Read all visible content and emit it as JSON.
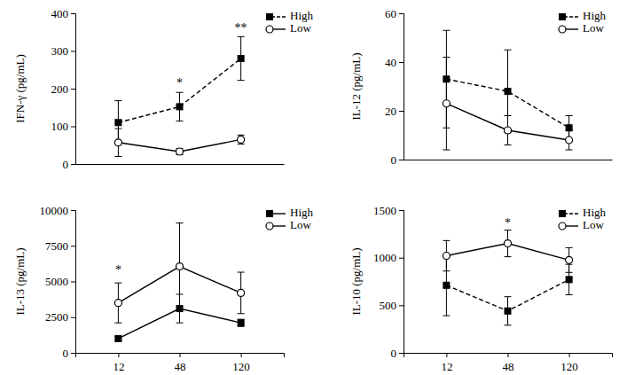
{
  "chart_data": [
    {
      "type": "line",
      "y_label": "IFN-γ (pg/mL)",
      "categories": [
        "12",
        "48",
        "120"
      ],
      "ylim": [
        0,
        400
      ],
      "yticks": [
        0,
        100,
        200,
        300,
        400
      ],
      "tick_labels": "y",
      "legend": "top-right",
      "series": [
        {
          "name": "High",
          "color": "#000000",
          "marker": "square",
          "line_style": "dashed",
          "values": [
            110,
            152,
            280
          ],
          "errors": [
            58,
            38,
            58
          ]
        },
        {
          "name": "Low",
          "color": "#000000",
          "marker": "circle-open",
          "line_style": "solid",
          "values": [
            57,
            33,
            65
          ],
          "errors": [
            37,
            8,
            12
          ]
        }
      ],
      "annotations": [
        {
          "text": "*",
          "x": "48",
          "y": 205
        },
        {
          "text": "**",
          "x": "120",
          "y": 350
        }
      ]
    },
    {
      "type": "line",
      "y_label": "IL-12 (pg/mL)",
      "categories": [
        "12",
        "48",
        "120"
      ],
      "ylim": [
        0,
        60
      ],
      "yticks": [
        0,
        20,
        40,
        60
      ],
      "tick_labels": "y",
      "legend": "top-right",
      "series": [
        {
          "name": "High",
          "color": "#000000",
          "marker": "square",
          "line_style": "dashed",
          "values": [
            33,
            28,
            13
          ],
          "errors": [
            20,
            17,
            5
          ]
        },
        {
          "name": "Low",
          "color": "#000000",
          "marker": "circle-open",
          "line_style": "solid",
          "values": [
            23,
            12,
            8
          ],
          "errors": [
            19,
            6,
            4
          ]
        }
      ]
    },
    {
      "type": "line",
      "y_label": "IL-13 (pg/mL)",
      "categories": [
        "12",
        "48",
        "120"
      ],
      "ylim": [
        0,
        10000
      ],
      "yticks": [
        0,
        2500,
        5000,
        7500,
        10000
      ],
      "legend": "top-right",
      "series": [
        {
          "name": "High",
          "color": "#000000",
          "marker": "square",
          "line_style": "solid",
          "values": [
            1000,
            3100,
            2100
          ],
          "errors": [
            150,
            1000,
            250
          ]
        },
        {
          "name": "Low",
          "color": "#000000",
          "marker": "circle-open",
          "line_style": "solid",
          "values": [
            3500,
            6050,
            4200
          ],
          "errors": [
            1400,
            3050,
            1450
          ]
        }
      ],
      "annotations": [
        {
          "text": "*",
          "x": "12",
          "y": 5500
        }
      ]
    },
    {
      "type": "line",
      "y_label": "IL-10 (pg/mL)",
      "categories": [
        "12",
        "48",
        "120"
      ],
      "ylim": [
        0,
        1500
      ],
      "yticks": [
        0,
        500,
        1000,
        1500
      ],
      "legend": "top-right",
      "series": [
        {
          "name": "High",
          "color": "#000000",
          "marker": "square",
          "line_style": "dashed",
          "values": [
            710,
            440,
            770
          ],
          "errors": [
            320,
            150,
            160
          ]
        },
        {
          "name": "Low",
          "color": "#000000",
          "marker": "circle-open",
          "line_style": "solid",
          "values": [
            1020,
            1150,
            975
          ],
          "errors": [
            160,
            140,
            130
          ]
        }
      ],
      "annotations": [
        {
          "text": "*",
          "x": "48",
          "y": 1320
        }
      ]
    }
  ]
}
